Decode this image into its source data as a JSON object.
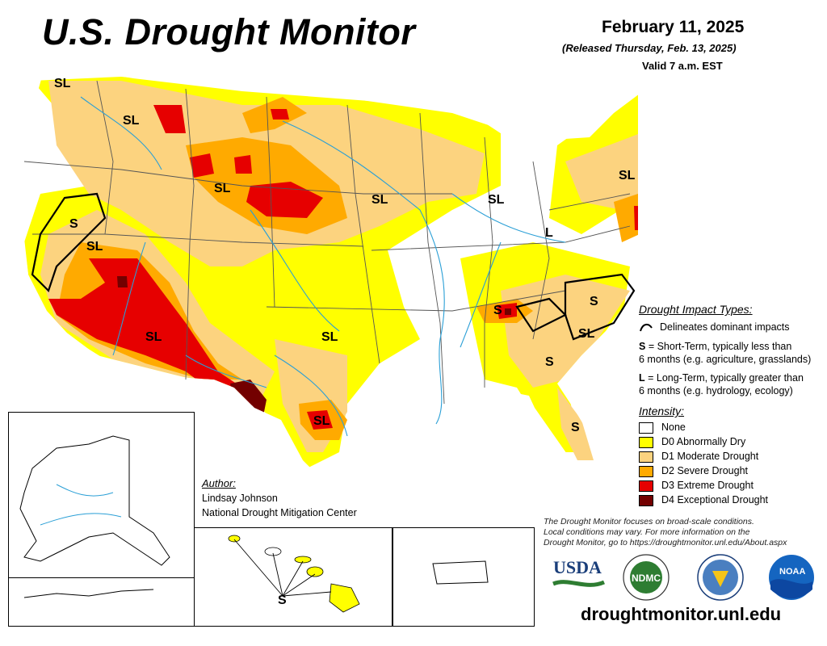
{
  "header": {
    "title": "U.S. Drought Monitor",
    "date": "February 11, 2025",
    "released": "(Released Thursday, Feb. 13, 2025)",
    "valid": "Valid 7 a.m. EST"
  },
  "map_labels": [
    "SL",
    "SL",
    "SL",
    "S",
    "SL",
    "SL",
    "SL",
    "SL",
    "SL",
    "L",
    "SL",
    "S",
    "SL",
    "S",
    "SL",
    "S",
    "S"
  ],
  "legend": {
    "impact_title": "Drought Impact Types:",
    "impact_line_text": "Delineates dominant impacts",
    "short_term_key": "S",
    "short_term_text": " = Short-Term, typically less than",
    "short_term_text2": "6 months (e.g. agriculture, grasslands)",
    "long_term_key": "L",
    "long_term_text": " = Long-Term, typically greater than",
    "long_term_text2": "6 months (e.g. hydrology, ecology)",
    "intensity_title": "Intensity:",
    "intensity_levels": [
      {
        "label": "None",
        "color": "#ffffff"
      },
      {
        "label": "D0 Abnormally Dry",
        "color": "#ffff00"
      },
      {
        "label": "D1 Moderate Drought",
        "color": "#fcd37f"
      },
      {
        "label": "D2 Severe Drought",
        "color": "#ffaa00"
      },
      {
        "label": "D3 Extreme Drought",
        "color": "#e60000"
      },
      {
        "label": "D4 Exceptional Drought",
        "color": "#730000"
      }
    ]
  },
  "author": {
    "heading": "Author:",
    "name": "Lindsay Johnson",
    "org": "National Drought Mitigation Center"
  },
  "disclaimer": {
    "line1": "The Drought Monitor focuses on broad-scale conditions.",
    "line2": "Local conditions may vary. For more information on the",
    "line3": "Drought Monitor, go to https://droughtmonitor.unl.edu/About.aspx"
  },
  "logos": {
    "usda": "USDA",
    "ndmc": "NDMC",
    "noaa": "NOAA"
  },
  "website": "droughtmonitor.unl.edu"
}
